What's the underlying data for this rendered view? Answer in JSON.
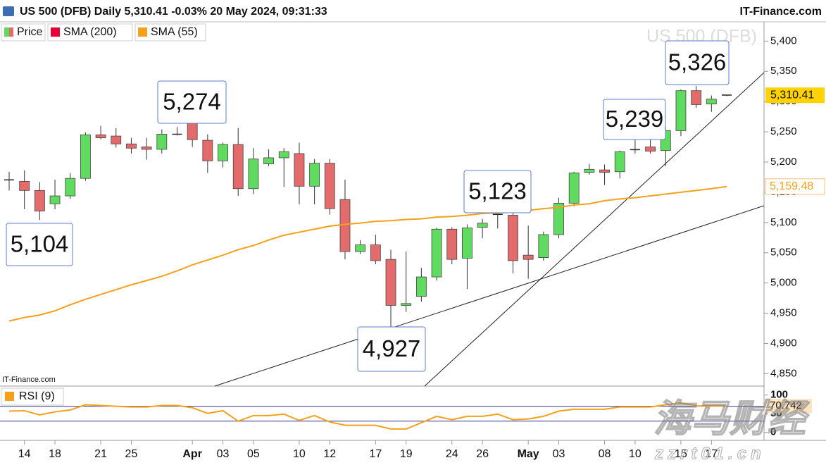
{
  "chart_data": [
    {
      "type": "candlestick",
      "title": "US 500 (DFB) Daily 5,310.41 -0.03% 20 May 2024, 09:31:33",
      "source": "IT-Finance.com",
      "watermark": "US 500 (DFB)",
      "credit": "IT-Finance.com",
      "categories": [
        null,
        "14",
        null,
        "18",
        null,
        null,
        "21",
        null,
        "25",
        null,
        null,
        null,
        "Apr",
        null,
        "03",
        null,
        "05",
        null,
        null,
        "10",
        null,
        "12",
        null,
        null,
        "17",
        null,
        "19",
        null,
        null,
        "24",
        null,
        "26",
        null,
        null,
        "May",
        null,
        "03",
        null,
        null,
        "08",
        null,
        "10",
        null,
        null,
        "15",
        null,
        "17",
        null
      ],
      "series": [
        {
          "name": "Price",
          "up_color": "#5fdc5f",
          "down_color": "#e36b6b",
          "last_label": "5,310.41",
          "open": [
            5171,
            5168,
            5153,
            5131,
            5144,
            5173,
            5245,
            5243,
            5230,
            5225,
            5221,
            5245,
            5272,
            5236,
            5202,
            5229,
            5156,
            5197,
            5207,
            5214,
            5160,
            5198,
            5138,
            5052,
            5063,
            5039,
            4963,
            4978,
            5010,
            5089,
            5041,
            5092,
            5113,
            5112,
            5046,
            5042,
            5080,
            5132,
            5183,
            5187,
            5184,
            5220,
            5225,
            5219,
            5252,
            5318,
            5296,
            5311
          ],
          "high": [
            5184,
            5186,
            5167,
            5171,
            5182,
            5249,
            5260,
            5256,
            5240,
            5240,
            5254,
            5258,
            5274,
            5246,
            5232,
            5256,
            5223,
            5221,
            5223,
            5232,
            5205,
            5205,
            5171,
            5071,
            5080,
            5055,
            5052,
            5025,
            5091,
            5092,
            5097,
            5106,
            5123,
            5118,
            5095,
            5085,
            5141,
            5184,
            5197,
            5196,
            5219,
            5238,
            5239,
            5258,
            5320,
            5326,
            5310,
            5311
          ],
          "low": [
            5153,
            5122,
            5104,
            5122,
            5139,
            5169,
            5238,
            5224,
            5214,
            5204,
            5214,
            5244,
            5225,
            5182,
            5191,
            5144,
            5147,
            5193,
            5159,
            5130,
            5130,
            5113,
            5039,
            5048,
            5031,
            4927,
            4952,
            4969,
            5004,
            5031,
            4990,
            5074,
            5090,
            5016,
            5007,
            5037,
            5074,
            5127,
            5179,
            5162,
            5173,
            5214,
            5214,
            5193,
            5243,
            5290,
            5283,
            5309
          ],
          "close": [
            5170,
            5153,
            5119,
            5144,
            5173,
            5245,
            5240,
            5230,
            5223,
            5221,
            5246,
            5247,
            5237,
            5202,
            5229,
            5156,
            5205,
            5207,
            5217,
            5160,
            5198,
            5123,
            5052,
            5063,
            5037,
            4963,
            4966,
            5010,
            5089,
            5039,
            5091,
            5099,
            5114,
            5037,
            5039,
            5080,
            5132,
            5182,
            5188,
            5183,
            5217,
            5221,
            5218,
            5252,
            5318,
            5295,
            5304,
            5310.41
          ]
        },
        {
          "name": "SMA (200)",
          "color": "#e8003a"
        },
        {
          "name": "SMA (55)",
          "color": "#f5a01a",
          "last_label": "5,159.48",
          "values": [
            4937,
            4943,
            4947,
            4954,
            4964,
            4973,
            4981,
            4989,
            4997,
            5004,
            5011,
            5020,
            5030,
            5038,
            5046,
            5055,
            5062,
            5071,
            5079,
            5084,
            5089,
            5094,
            5097,
            5099,
            5102,
            5103,
            5105,
            5106,
            5109,
            5110,
            5112,
            5115,
            5116,
            5117,
            5120,
            5123,
            5125,
            5129,
            5131,
            5136,
            5139,
            5141,
            5144,
            5147,
            5150,
            5153,
            5156,
            5159.48
          ]
        }
      ],
      "annotations": [
        "5,104",
        "5,274",
        "4,927",
        "5,123",
        "5,239",
        "5,326"
      ],
      "ylim": [
        4833,
        5433
      ],
      "yticks": [
        {
          "value": 4850,
          "label": "4,850"
        },
        {
          "value": 4900,
          "label": "4,900"
        },
        {
          "value": 4950,
          "label": "4,950"
        },
        {
          "value": 5000,
          "label": "5,000"
        },
        {
          "value": 5050,
          "label": "5,050"
        },
        {
          "value": 5100,
          "label": "5,100"
        },
        {
          "value": 5150,
          "label": "5,150"
        },
        {
          "value": 5200,
          "label": "5,200"
        },
        {
          "value": 5250,
          "label": "5,250"
        },
        {
          "value": 5300,
          "label": "5,300"
        },
        {
          "value": 5350,
          "label": "5,350"
        },
        {
          "value": 5400,
          "label": "5,400"
        }
      ],
      "grid": false
    },
    {
      "type": "line",
      "legend": "RSI (9)",
      "color": "#f5a01a",
      "values": [
        57,
        58,
        47,
        55,
        60,
        74,
        72,
        70,
        68,
        68,
        72,
        72,
        66,
        51,
        58,
        30,
        45,
        45,
        49,
        32,
        45,
        28,
        19,
        19,
        19,
        9,
        9,
        26,
        43,
        34,
        43,
        43,
        49,
        34,
        36,
        43,
        57,
        62,
        62,
        62,
        68,
        68,
        68,
        74,
        79,
        71,
        71,
        70.742
      ],
      "last_label": "70.742",
      "ylim": [
        -10,
        124
      ],
      "yticks": [
        0,
        50,
        100
      ],
      "ref_lines": [
        70,
        30
      ],
      "ref_color": "#3a3a9a",
      "grid": false
    }
  ],
  "watermark": {
    "logo": "海马财经",
    "url": "zzrt01.cn"
  }
}
